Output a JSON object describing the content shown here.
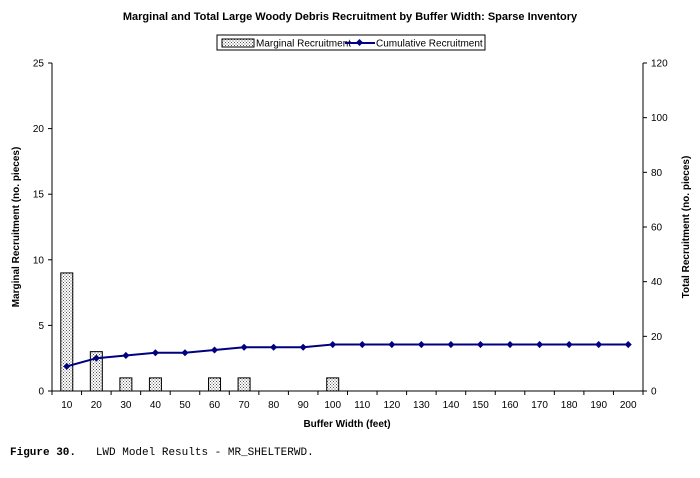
{
  "chart_data": {
    "type": "bar+line",
    "title": "Marginal and Total Large Woody Debris Recruitment by Buffer Width:  Sparse Inventory",
    "xlabel": "Buffer Width (feet)",
    "ylabel_left": "Marginal Recruitment (no. pieces)",
    "ylabel_right": "Total Recruitment (no. pieces)",
    "ylim_left": [
      0,
      25
    ],
    "yticks_left": [
      0,
      5,
      10,
      15,
      20,
      25
    ],
    "ylim_right": [
      0,
      120
    ],
    "yticks_right": [
      0,
      20,
      40,
      60,
      80,
      100,
      120
    ],
    "categories": [
      "10",
      "20",
      "30",
      "40",
      "50",
      "60",
      "70",
      "80",
      "90",
      "100",
      "110",
      "120",
      "130",
      "140",
      "150",
      "160",
      "170",
      "180",
      "190",
      "200"
    ],
    "series": [
      {
        "name": "Marginal Recruitment",
        "type": "bar",
        "axis": "left",
        "values": [
          9,
          3,
          1,
          1,
          0,
          1,
          1,
          0,
          0,
          1,
          0,
          0,
          0,
          0,
          0,
          0,
          0,
          0,
          0,
          0
        ]
      },
      {
        "name": "Cumulative Recruitment",
        "type": "line",
        "axis": "right",
        "values": [
          9,
          12,
          13,
          14,
          14,
          15,
          16,
          16,
          16,
          17,
          17,
          17,
          17,
          17,
          17,
          17,
          17,
          17,
          17,
          17
        ]
      }
    ],
    "legend": "top-center",
    "grid": false,
    "colors": {
      "bar_fill": "#d9d9d9",
      "bar_stroke": "#000000",
      "line": "#000080"
    }
  },
  "caption": {
    "label": "Figure 30.",
    "text": "LWD Model Results - MR_SHELTERWD."
  }
}
